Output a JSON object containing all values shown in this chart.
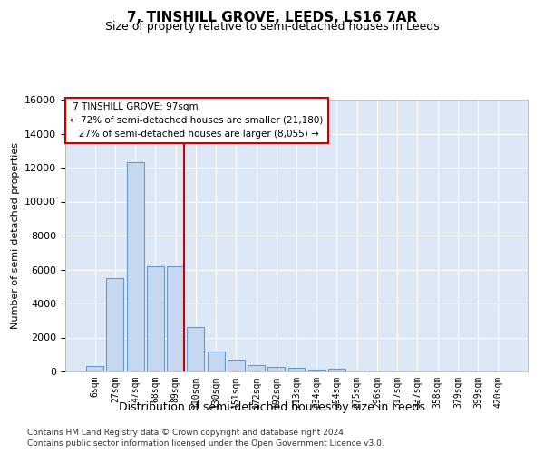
{
  "title": "7, TINSHILL GROVE, LEEDS, LS16 7AR",
  "subtitle": "Size of property relative to semi-detached houses in Leeds",
  "xlabel": "Distribution of semi-detached houses by size in Leeds",
  "ylabel": "Number of semi-detached properties",
  "property_label": "7 TINSHILL GROVE: 97sqm",
  "pct_smaller": 72,
  "pct_larger": 27,
  "n_smaller": "21,180",
  "n_larger": "8,055",
  "categories": [
    "6sqm",
    "27sqm",
    "47sqm",
    "68sqm",
    "89sqm",
    "110sqm",
    "130sqm",
    "151sqm",
    "172sqm",
    "192sqm",
    "213sqm",
    "234sqm",
    "254sqm",
    "275sqm",
    "296sqm",
    "317sqm",
    "337sqm",
    "358sqm",
    "379sqm",
    "399sqm",
    "420sqm"
  ],
  "bar_values": [
    300,
    5500,
    12300,
    6200,
    6200,
    2600,
    1200,
    700,
    350,
    250,
    200,
    100,
    150,
    50,
    0,
    0,
    0,
    0,
    0,
    0,
    0
  ],
  "bar_color": "#c5d8ef",
  "bar_edge_color": "#6699cc",
  "line_color": "#cc0000",
  "annotation_box_color": "#cc0000",
  "background_color": "#dce8f5",
  "ylim": [
    0,
    16000
  ],
  "yticks": [
    0,
    2000,
    4000,
    6000,
    8000,
    10000,
    12000,
    14000,
    16000
  ],
  "footer1": "Contains HM Land Registry data © Crown copyright and database right 2024.",
  "footer2": "Contains public sector information licensed under the Open Government Licence v3.0."
}
